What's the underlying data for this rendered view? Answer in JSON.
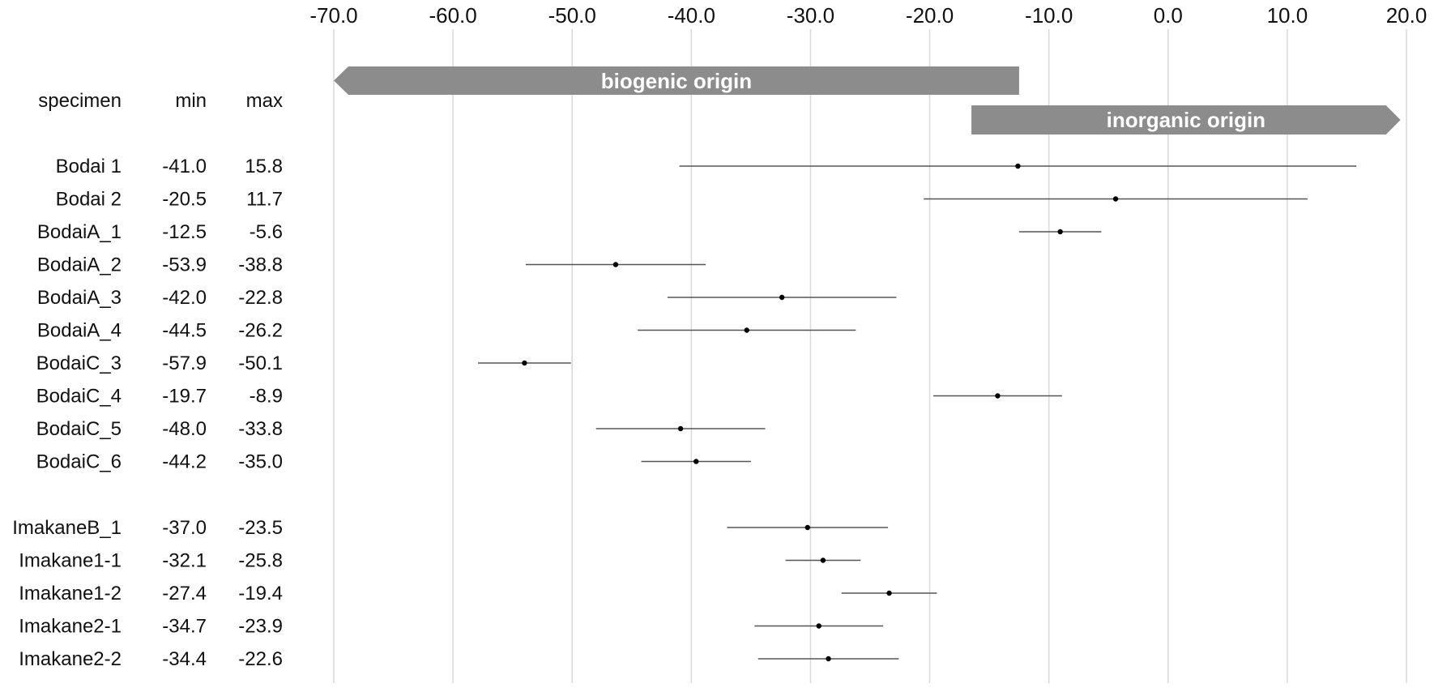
{
  "chart_data": {
    "type": "range",
    "title": "",
    "xlabel": "",
    "ylabel": "",
    "xlim": [
      -70,
      20
    ],
    "x_ticks": [
      -70,
      -60,
      -50,
      -40,
      -30,
      -20,
      -10,
      0,
      10,
      20
    ],
    "x_tick_labels": [
      "-70.0",
      "-60.0",
      "-50.0",
      "-40.0",
      "-30.0",
      "-20.0",
      "-10.0",
      "0.0",
      "10.0",
      "20.0"
    ],
    "gridlines": true,
    "column_headers": {
      "specimen": "specimen",
      "min": "min",
      "max": "max"
    },
    "annotations": [
      {
        "label": "biogenic origin",
        "from": -12.5,
        "to": -70,
        "direction": "left"
      },
      {
        "label": "inorganic origin",
        "from": -16.5,
        "to": 19.5,
        "direction": "right"
      }
    ],
    "rows": [
      {
        "specimen": "Bodai 1",
        "min": -41.0,
        "max": 15.8,
        "min_label": "-41.0",
        "max_label": "15.8",
        "group": 0
      },
      {
        "specimen": "Bodai 2",
        "min": -20.5,
        "max": 11.7,
        "min_label": "-20.5",
        "max_label": "11.7",
        "group": 0
      },
      {
        "specimen": "BodaiA_1",
        "min": -12.5,
        "max": -5.6,
        "min_label": "-12.5",
        "max_label": "-5.6",
        "group": 0
      },
      {
        "specimen": "BodaiA_2",
        "min": -53.9,
        "max": -38.8,
        "min_label": "-53.9",
        "max_label": "-38.8",
        "group": 0
      },
      {
        "specimen": "BodaiA_3",
        "min": -42.0,
        "max": -22.8,
        "min_label": "-42.0",
        "max_label": "-22.8",
        "group": 0
      },
      {
        "specimen": "BodaiA_4",
        "min": -44.5,
        "max": -26.2,
        "min_label": "-44.5",
        "max_label": "-26.2",
        "group": 0
      },
      {
        "specimen": "BodaiC_3",
        "min": -57.9,
        "max": -50.1,
        "min_label": "-57.9",
        "max_label": "-50.1",
        "group": 0
      },
      {
        "specimen": "BodaiC_4",
        "min": -19.7,
        "max": -8.9,
        "min_label": "-19.7",
        "max_label": "-8.9",
        "group": 0
      },
      {
        "specimen": "BodaiC_5",
        "min": -48.0,
        "max": -33.8,
        "min_label": "-48.0",
        "max_label": "-33.8",
        "group": 0
      },
      {
        "specimen": "BodaiC_6",
        "min": -44.2,
        "max": -35.0,
        "min_label": "-44.2",
        "max_label": "-35.0",
        "group": 0
      },
      {
        "specimen": "ImakaneB_1",
        "min": -37.0,
        "max": -23.5,
        "min_label": "-37.0",
        "max_label": "-23.5",
        "group": 1
      },
      {
        "specimen": "Imakane1-1",
        "min": -32.1,
        "max": -25.8,
        "min_label": "-32.1",
        "max_label": "-25.8",
        "group": 1
      },
      {
        "specimen": "Imakane1-2",
        "min": -27.4,
        "max": -19.4,
        "min_label": "-27.4",
        "max_label": "-19.4",
        "group": 1
      },
      {
        "specimen": "Imakane2-1",
        "min": -34.7,
        "max": -23.9,
        "min_label": "-34.7",
        "max_label": "-23.9",
        "group": 1
      },
      {
        "specimen": "Imakane2-2",
        "min": -34.4,
        "max": -22.6,
        "min_label": "-34.4",
        "max_label": "-22.6",
        "group": 1
      }
    ]
  }
}
